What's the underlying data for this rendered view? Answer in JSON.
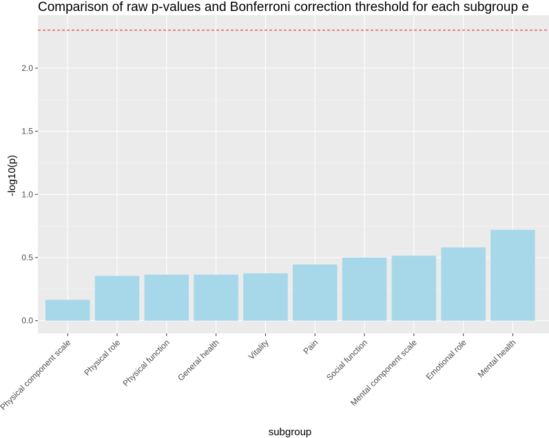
{
  "chart_data": {
    "type": "bar",
    "title": "Comparison of raw p-values and Bonferroni correction threshold for each subgroup e",
    "xlabel": "subgroup",
    "ylabel": "-log10(p)",
    "categories": [
      "Physical component scale",
      "Physical role",
      "Physical function",
      "General health",
      "Vitality",
      "Pain",
      "Social function",
      "Mental component scale",
      "Emotional role",
      "Mental health"
    ],
    "values": [
      0.165,
      0.355,
      0.365,
      0.365,
      0.375,
      0.445,
      0.5,
      0.515,
      0.58,
      0.72
    ],
    "threshold": 2.301,
    "y_ticks": [
      0.0,
      0.5,
      1.0,
      1.5,
      2.0
    ],
    "y_tick_labels": [
      "0.0",
      "0.5",
      "1.0",
      "1.5",
      "2.0"
    ],
    "ylim": [
      -0.1,
      2.42
    ],
    "grid": true,
    "colors": {
      "bar": "#a6d8ea",
      "threshold": "#ee2a2a",
      "panel": "#ebebeb",
      "grid_major": "#ffffff",
      "grid_minor": "#f5f5f5"
    }
  }
}
